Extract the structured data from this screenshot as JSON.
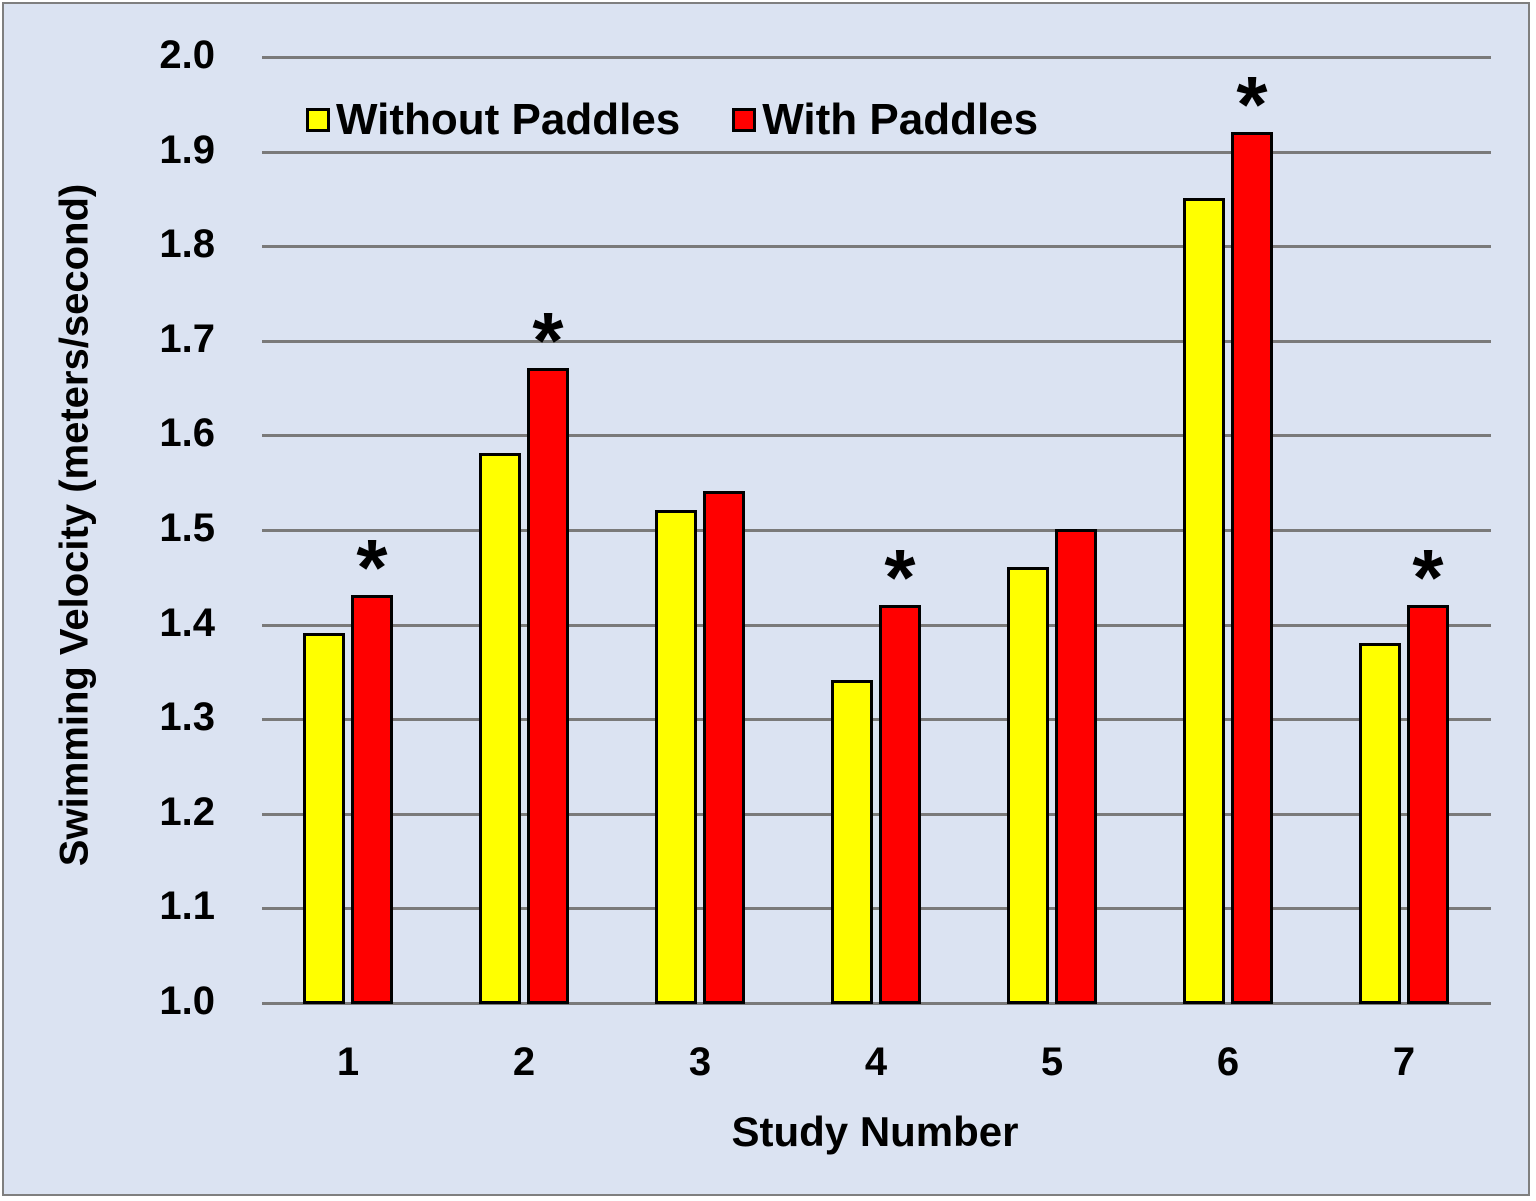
{
  "chart_data": {
    "type": "bar",
    "title": "",
    "xlabel": "Study Number",
    "ylabel": "Swimming Velocity (meters/second)",
    "ylim": [
      1.0,
      2.0
    ],
    "yticks": [
      "1.0",
      "1.1",
      "1.2",
      "1.3",
      "1.4",
      "1.5",
      "1.6",
      "1.7",
      "1.8",
      "1.9",
      "2.0"
    ],
    "categories": [
      "1",
      "2",
      "3",
      "4",
      "5",
      "6",
      "7"
    ],
    "series": [
      {
        "name": "Without Paddles",
        "color": "#ffff00",
        "values": [
          1.39,
          1.58,
          1.52,
          1.34,
          1.46,
          1.85,
          1.38
        ]
      },
      {
        "name": "With Paddles",
        "color": "#ff0000",
        "values": [
          1.43,
          1.67,
          1.54,
          1.42,
          1.5,
          1.92,
          1.42
        ]
      }
    ],
    "annotations": {
      "marker": "*",
      "significant_studies": [
        "1",
        "2",
        "4",
        "6",
        "7"
      ],
      "placed_on_series": "With Paddles"
    },
    "grid": true,
    "legend_position": "top-left inside plot"
  },
  "legend": {
    "items": [
      {
        "label": "Without Paddles",
        "color": "#ffff00"
      },
      {
        "label": "With Paddles",
        "color": "#ff0000"
      }
    ]
  },
  "axes": {
    "x_title": "Study Number",
    "y_title": "Swimming Velocity (meters/second)"
  },
  "colors": {
    "background": "#dbe3f2",
    "border": "#7f7f7f",
    "gridline": "#7a7a7a"
  }
}
